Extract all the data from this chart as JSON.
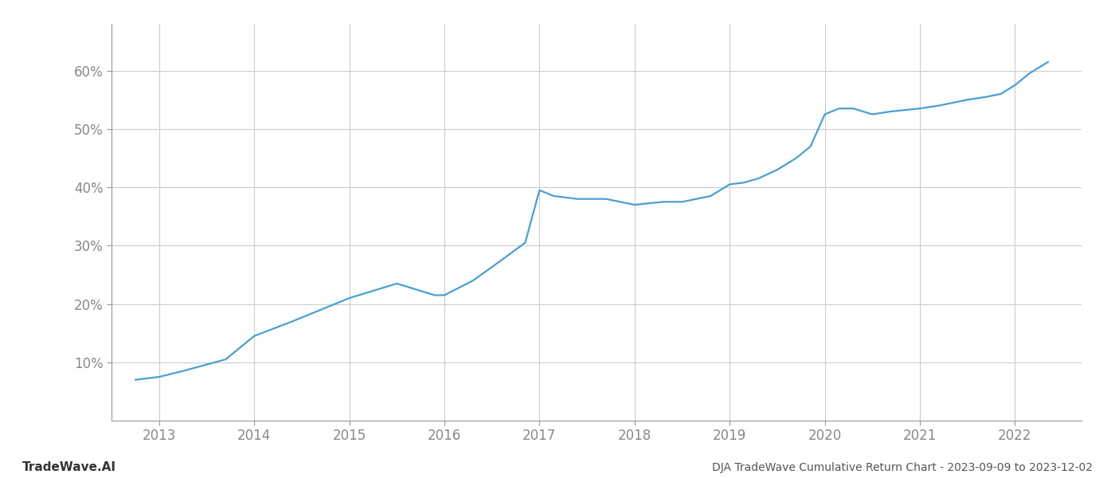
{
  "title": "DJA TradeWave Cumulative Return Chart - 2023-09-09 to 2023-12-02",
  "watermark": "TradeWave.AI",
  "line_color": "#4a9fd4",
  "background_color": "#ffffff",
  "grid_color": "#cccccc",
  "x_values": [
    2012.75,
    2013.0,
    2013.25,
    2013.7,
    2014.0,
    2014.4,
    2015.0,
    2015.5,
    2015.9,
    2016.0,
    2016.3,
    2016.6,
    2016.85,
    2017.0,
    2017.15,
    2017.4,
    2017.7,
    2018.0,
    2018.3,
    2018.5,
    2018.8,
    2019.0,
    2019.15,
    2019.3,
    2019.5,
    2019.7,
    2019.85,
    2020.0,
    2020.15,
    2020.3,
    2020.5,
    2020.7,
    2021.0,
    2021.2,
    2021.5,
    2021.7,
    2021.85,
    2022.0,
    2022.15,
    2022.35
  ],
  "y_values": [
    7.0,
    7.5,
    8.5,
    10.5,
    14.5,
    17.0,
    21.0,
    23.5,
    21.5,
    21.5,
    24.0,
    27.5,
    30.5,
    39.5,
    38.5,
    38.0,
    38.0,
    37.0,
    37.5,
    37.5,
    38.5,
    40.5,
    40.8,
    41.5,
    43.0,
    45.0,
    47.0,
    52.5,
    53.5,
    53.5,
    52.5,
    53.0,
    53.5,
    54.0,
    55.0,
    55.5,
    56.0,
    57.5,
    59.5,
    61.5
  ],
  "xlim": [
    2012.5,
    2022.7
  ],
  "ylim": [
    0,
    68
  ],
  "yticks": [
    10,
    20,
    30,
    40,
    50,
    60
  ],
  "xticks": [
    2013,
    2014,
    2015,
    2016,
    2017,
    2018,
    2019,
    2020,
    2021,
    2022
  ],
  "line_width": 1.6,
  "figsize": [
    14,
    6
  ],
  "dpi": 100
}
